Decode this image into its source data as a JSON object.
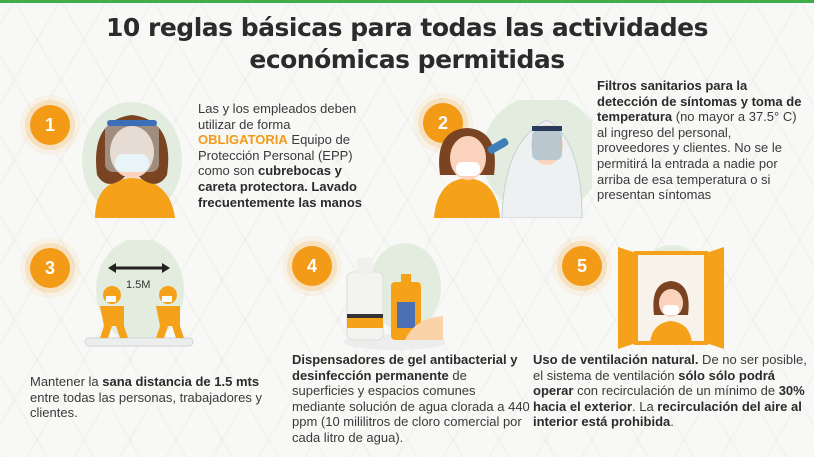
{
  "title": {
    "line1": "10 reglas básicas para todas las actividades",
    "line2": "económicas permitidas"
  },
  "colors": {
    "accent": "#f39a16",
    "top_bar": "#3fae49",
    "circle_bg": "#e3eddf"
  },
  "rules": [
    {
      "number": "1",
      "segments": [
        {
          "t": "Las y los empleados deben utilizar de forma "
        },
        {
          "t": "OBLIGATORIA",
          "style": "highlight"
        },
        {
          "t": " Equipo de Protección Personal (EPP) como son "
        },
        {
          "t": "cubrebocas y careta protectora. Lavado frecuentemente las manos",
          "style": "bold"
        }
      ]
    },
    {
      "number": "2",
      "segments": [
        {
          "t": "Filtros sanitarios para la detección de síntomas y toma de temperatura",
          "style": "bold"
        },
        {
          "t": " (no mayor a 37.5° C) al ingreso del personal, proveedores y clientes. No se le permitirá la entrada a nadie por arriba de esa temperatura o si presentan síntomas"
        }
      ]
    },
    {
      "number": "3",
      "label_distance": "1.5M",
      "segments": [
        {
          "t": "Mantener la "
        },
        {
          "t": "sana distancia de 1.5 mts",
          "style": "bold"
        },
        {
          "t": " entre todas las personas, trabajadores y clientes."
        }
      ]
    },
    {
      "number": "4",
      "segments": [
        {
          "t": "Dispensadores de gel antibacterial y desinfección permanente",
          "style": "bold"
        },
        {
          "t": " de superficies y espacios comunes mediante solución de agua clorada a 440 ppm (10 mililitros de cloro comercial por cada litro de agua)."
        }
      ]
    },
    {
      "number": "5",
      "segments": [
        {
          "t": "Uso de ventilación natural.",
          "style": "bold"
        },
        {
          "t": " De no ser posible, el sistema de ventilación "
        },
        {
          "t": "sólo sólo podrá operar",
          "style": "bold"
        },
        {
          "t": " con recirculación de un mínimo de "
        },
        {
          "t": "30% hacia el exterior",
          "style": "bold"
        },
        {
          "t": ". La "
        },
        {
          "t": "recirculación  del aire al interior está prohibida",
          "style": "bold"
        },
        {
          "t": "."
        }
      ]
    }
  ]
}
